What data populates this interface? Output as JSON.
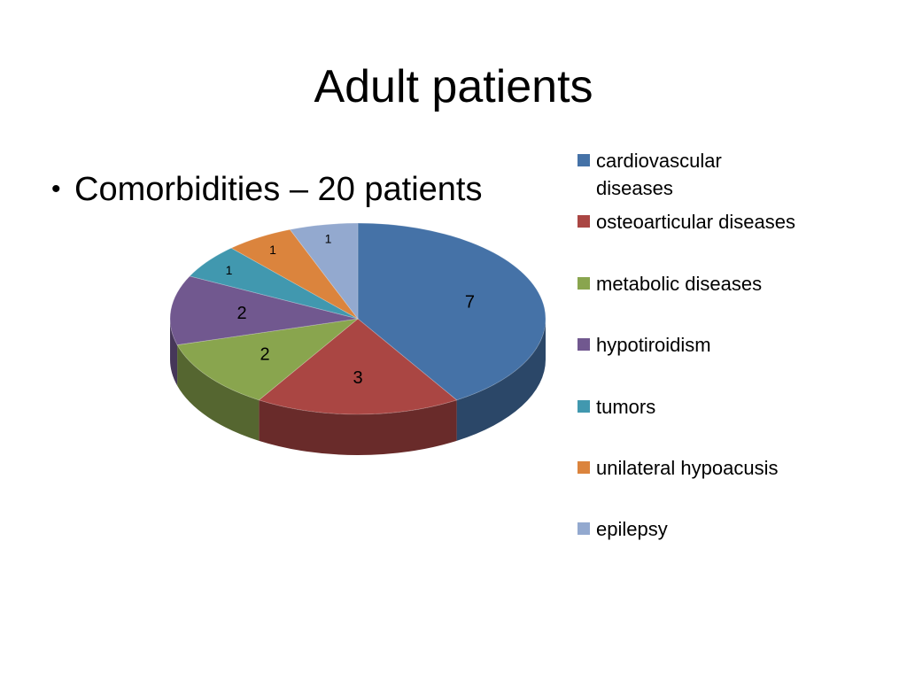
{
  "slide": {
    "title": "Adult patients",
    "bullet_char": "•",
    "bullet_text": "Comorbidities – 20 patients"
  },
  "chart_data": {
    "type": "pie",
    "title": "",
    "categories": [
      "cardiovascular diseases",
      "osteoarticular diseases",
      "metabolic diseases",
      "hypotiroidism",
      "tumors",
      "unilateral hypoacusis",
      "epilepsy"
    ],
    "values": [
      7,
      3,
      2,
      2,
      1,
      1,
      1
    ],
    "colors": [
      "#4572A7",
      "#AA4643",
      "#89A54E",
      "#71588F",
      "#4198AF",
      "#DB843D",
      "#93A9CF"
    ],
    "data_labels": [
      "7",
      "3",
      "2",
      "2",
      "1",
      "1",
      "1"
    ],
    "legend_position": "right",
    "style": "3d"
  }
}
